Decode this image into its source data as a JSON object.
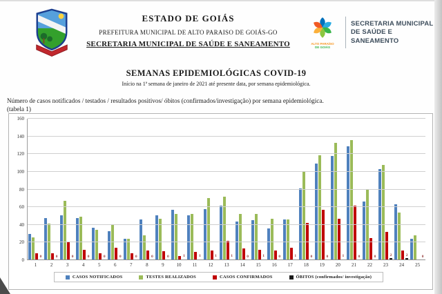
{
  "letterhead": {
    "state": "ESTADO DE GOIÁS",
    "municipality": "PREFEITURA MUNICIPAL DE ALTO PARAISO DE GOIÁS-GO",
    "department": "SECRETARIA MUNICIPAL DE SAÚDE E SANEAMENTO"
  },
  "logo_right": {
    "caption_line1": "ALTO PARAÍSO",
    "caption_line2": "DE GOIÁS",
    "org_lines": [
      "SECRETARIA MUNICIPAL",
      "DE SAÚDE E",
      "SANEAMENTO"
    ]
  },
  "document": {
    "title": "SEMANAS EPIDEMIOLÓGICAS COVID-19",
    "subtitle": "Início na 1ª semana de janeiro de 2021 até presente data, por semana epidemiológica.",
    "description": "Número de casos notificados / testados / resultados positivos/ óbitos (confirmados/investigação) por semana epidemiológica.",
    "description_note": "(tabela 1)"
  },
  "chart_data": {
    "type": "bar",
    "title": "",
    "xlabel": "",
    "ylabel": "",
    "ylim": [
      0,
      160
    ],
    "ytick_step": 20,
    "grid": true,
    "legend_position": "bottom",
    "categories": [
      1,
      2,
      3,
      4,
      5,
      6,
      7,
      8,
      9,
      10,
      11,
      12,
      13,
      14,
      15,
      16,
      17,
      18,
      19,
      20,
      21,
      22,
      23,
      24,
      25
    ],
    "series": [
      {
        "name": "CASOS NOTIFICADOS",
        "color": "#4f81bd",
        "data_labels": false,
        "values": [
          30,
          48,
          51,
          48,
          37,
          33,
          24,
          46,
          51,
          57,
          51,
          58,
          62,
          44,
          45,
          36,
          46,
          81,
          109,
          118,
          129,
          66,
          103,
          63,
          24
        ]
      },
      {
        "name": "TESTES REALIZADOS",
        "color": "#9bbb59",
        "data_labels": false,
        "values": [
          26,
          41,
          67,
          49,
          34,
          40,
          24,
          28,
          47,
          52,
          52,
          70,
          72,
          52,
          52,
          47,
          46,
          100,
          119,
          133,
          136,
          80,
          108,
          54,
          28
        ]
      },
      {
        "name": "CASOS CONFIRMADOS",
        "color": "#c00000",
        "data_labels": false,
        "values": [
          8,
          8,
          21,
          12,
          8,
          14,
          8,
          11,
          10,
          5,
          9,
          11,
          22,
          13,
          12,
          11,
          14,
          42,
          57,
          47,
          62,
          25,
          32,
          11,
          1
        ]
      },
      {
        "name": "ÓBITOS (confirmados/ investigação)",
        "color": "#1a1a1a",
        "data_labels": true,
        "label_color": "#943634",
        "values": [
          0,
          0,
          0,
          0,
          0,
          0,
          0,
          0,
          0,
          1,
          1,
          1,
          1,
          0,
          1,
          0,
          1,
          0,
          0,
          1,
          0,
          0,
          2,
          2,
          0
        ]
      }
    ],
    "colors": {
      "grid": "#cfcfcf",
      "axis": "#8f8f8f"
    }
  }
}
